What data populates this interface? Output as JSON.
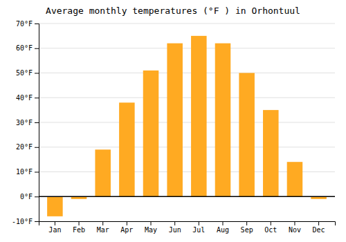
{
  "chart_data": {
    "type": "bar",
    "title": "Average monthly temperatures (°F ) in Orhontuul",
    "categories": [
      "Jan",
      "Feb",
      "Mar",
      "Apr",
      "May",
      "Jun",
      "Jul",
      "Aug",
      "Sep",
      "Oct",
      "Nov",
      "Dec"
    ],
    "values": [
      -8,
      -1,
      19,
      38,
      51,
      62,
      65,
      62,
      50,
      35,
      14,
      -1
    ],
    "color": "#FFAA22",
    "ylim": [
      -10,
      70
    ],
    "yticks": [
      {
        "value": -10,
        "label": "-10°F"
      },
      {
        "value": 0,
        "label": "0°F"
      },
      {
        "value": 10,
        "label": "10°F"
      },
      {
        "value": 20,
        "label": "20°F"
      },
      {
        "value": 30,
        "label": "30°F"
      },
      {
        "value": 40,
        "label": "40°F"
      },
      {
        "value": 50,
        "label": "50°F"
      },
      {
        "value": 60,
        "label": "60°F"
      },
      {
        "value": 70,
        "label": "70°F"
      }
    ],
    "grid": true
  }
}
